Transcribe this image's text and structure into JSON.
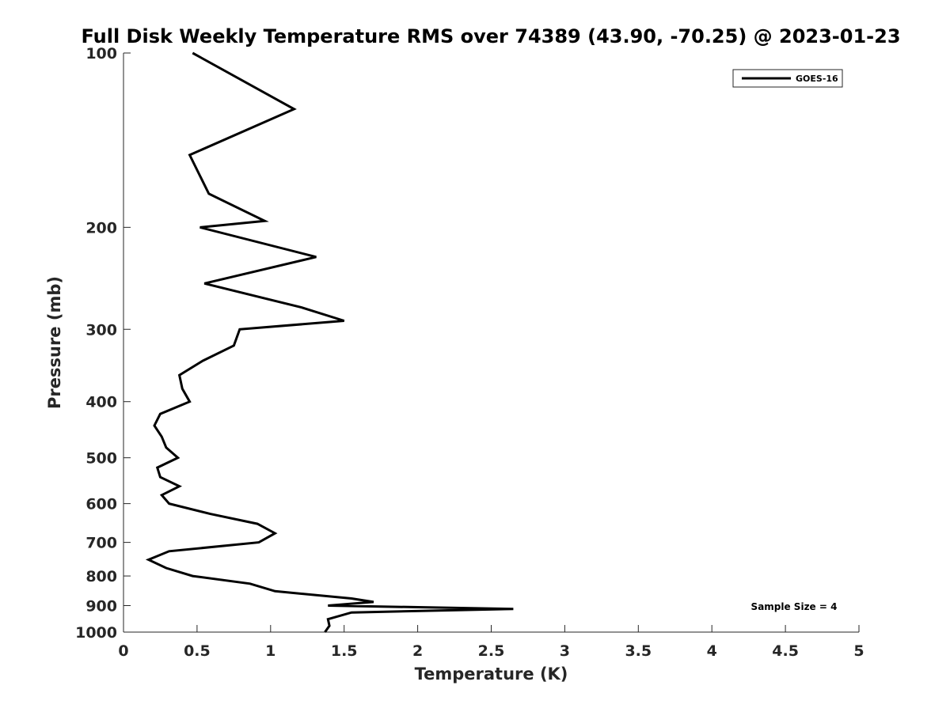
{
  "chart_data": {
    "type": "line",
    "title": "Full Disk Weekly Temperature RMS over 74389 (43.90, -70.25) @ 2023-01-23",
    "xlabel": "Temperature (K)",
    "ylabel": "Pressure (mb)",
    "xlim": [
      0,
      5
    ],
    "ylim": [
      100,
      1000
    ],
    "y_scale": "log",
    "y_reversed": true,
    "x_ticks": [
      "0",
      "0.5",
      "1",
      "1.5",
      "2",
      "2.5",
      "3",
      "3.5",
      "4",
      "4.5",
      "5"
    ],
    "y_ticks": [
      "100",
      "200",
      "300",
      "400",
      "500",
      "600",
      "700",
      "800",
      "900",
      "1000"
    ],
    "grid": false,
    "legend_placement": "top-right",
    "annotation": "Sample Size = 4",
    "line_color": "#000000",
    "series": [
      {
        "name": "GOES-16",
        "points": [
          [
            0.47,
            100
          ],
          [
            1.16,
            125
          ],
          [
            0.45,
            150
          ],
          [
            0.58,
            175
          ],
          [
            0.96,
            195
          ],
          [
            0.52,
            200
          ],
          [
            1.31,
            225
          ],
          [
            0.55,
            250
          ],
          [
            1.21,
            275
          ],
          [
            1.5,
            290
          ],
          [
            0.79,
            300
          ],
          [
            0.75,
            320
          ],
          [
            0.54,
            340
          ],
          [
            0.38,
            360
          ],
          [
            0.4,
            380
          ],
          [
            0.45,
            400
          ],
          [
            0.25,
            420
          ],
          [
            0.21,
            440
          ],
          [
            0.26,
            460
          ],
          [
            0.29,
            480
          ],
          [
            0.37,
            500
          ],
          [
            0.23,
            520
          ],
          [
            0.25,
            540
          ],
          [
            0.38,
            560
          ],
          [
            0.26,
            580
          ],
          [
            0.31,
            600
          ],
          [
            0.59,
            625
          ],
          [
            0.91,
            650
          ],
          [
            1.03,
            675
          ],
          [
            0.92,
            700
          ],
          [
            0.31,
            725
          ],
          [
            0.17,
            750
          ],
          [
            0.29,
            775
          ],
          [
            0.47,
            800
          ],
          [
            0.86,
            825
          ],
          [
            1.03,
            850
          ],
          [
            1.55,
            875
          ],
          [
            1.7,
            887
          ],
          [
            1.39,
            900
          ],
          [
            2.65,
            912
          ],
          [
            1.55,
            925
          ],
          [
            1.39,
            950
          ],
          [
            1.4,
            975
          ],
          [
            1.37,
            1000
          ]
        ]
      }
    ]
  }
}
